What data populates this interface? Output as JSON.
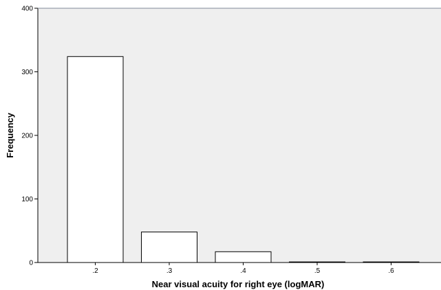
{
  "chart_data": {
    "type": "bar",
    "title": "",
    "xlabel": "Near visual acuity for right eye (logMAR)",
    "ylabel": "Frequency",
    "categories": [
      ".2",
      ".3",
      ".4",
      ".5",
      ".6"
    ],
    "values": [
      324,
      48,
      17,
      1,
      1
    ],
    "ylim": [
      0,
      400
    ],
    "yticks": [
      "0",
      "100",
      "200",
      "300",
      "400"
    ],
    "grid": false,
    "legend": "none",
    "colors": {
      "plot_background": "#efefef",
      "bar_fill": "#ffffff",
      "bar_stroke": "#000000",
      "frame": "#000000"
    }
  }
}
